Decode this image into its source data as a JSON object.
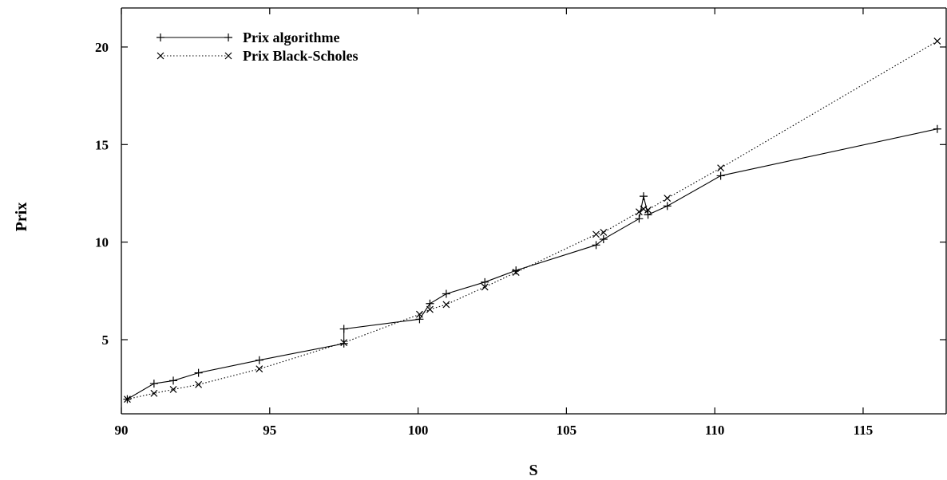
{
  "chart_data": {
    "type": "line",
    "xlabel": "S",
    "ylabel": "Prix",
    "xlim": [
      90,
      117.8
    ],
    "ylim": [
      1.2,
      22
    ],
    "xticks": [
      90,
      95,
      100,
      105,
      110,
      115
    ],
    "yticks": [
      5,
      10,
      15,
      20
    ],
    "grid": false,
    "legend_position": "top-left",
    "series": [
      {
        "name": "Prix algorithme",
        "line_style": "solid",
        "marker": "plus",
        "points": [
          [
            90.2,
            1.95
          ],
          [
            91.1,
            2.75
          ],
          [
            91.75,
            2.9
          ],
          [
            92.6,
            3.3
          ],
          [
            94.65,
            3.95
          ],
          [
            97.5,
            4.8
          ],
          [
            97.5,
            5.55
          ],
          [
            100.05,
            6.05
          ],
          [
            100.4,
            6.85
          ],
          [
            100.95,
            7.35
          ],
          [
            102.25,
            7.95
          ],
          [
            103.3,
            8.55
          ],
          [
            106.0,
            9.85
          ],
          [
            106.25,
            10.15
          ],
          [
            107.45,
            11.2
          ],
          [
            107.6,
            12.35
          ],
          [
            107.75,
            11.4
          ],
          [
            108.4,
            11.85
          ],
          [
            110.2,
            13.4
          ],
          [
            117.5,
            15.8
          ]
        ]
      },
      {
        "name": "Prix Black-Scholes",
        "line_style": "dotted",
        "marker": "cross",
        "points": [
          [
            90.2,
            1.95
          ],
          [
            91.1,
            2.25
          ],
          [
            91.75,
            2.45
          ],
          [
            92.6,
            2.7
          ],
          [
            94.65,
            3.5
          ],
          [
            97.5,
            4.85
          ],
          [
            100.05,
            6.3
          ],
          [
            100.4,
            6.55
          ],
          [
            100.95,
            6.8
          ],
          [
            102.25,
            7.7
          ],
          [
            103.3,
            8.45
          ],
          [
            106.0,
            10.4
          ],
          [
            106.25,
            10.5
          ],
          [
            107.45,
            11.55
          ],
          [
            107.6,
            11.7
          ],
          [
            107.75,
            11.65
          ],
          [
            108.4,
            12.25
          ],
          [
            110.2,
            13.8
          ],
          [
            117.5,
            20.3
          ]
        ]
      }
    ]
  }
}
